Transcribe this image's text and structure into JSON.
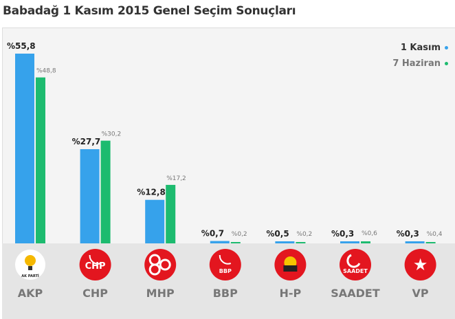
{
  "title": "Babadağ 1 Kasım 2015 Genel Seçim Sonuçları",
  "colors": {
    "kasim": "#36a2eb",
    "haziran": "#1dbb6f",
    "logo_red": "#e3161f"
  },
  "chart_data": {
    "type": "bar",
    "title": "Babadağ 1 Kasım 2015 Genel Seçim Sonuçları",
    "categories": [
      "AKP",
      "CHP",
      "MHP",
      "BBP",
      "H-P",
      "SAADET",
      "VP"
    ],
    "series": [
      {
        "name": "1 Kasım",
        "values": [
          55.8,
          27.7,
          12.8,
          0.7,
          0.5,
          0.3,
          0.3
        ],
        "labels": [
          "%55,8",
          "%27,7",
          "%12,8",
          "%0,7",
          "%0,5",
          "%0,3",
          "%0,3"
        ]
      },
      {
        "name": "7 Haziran",
        "values": [
          48.8,
          30.2,
          17.2,
          0.2,
          0.2,
          0.6,
          0.4
        ],
        "labels": [
          "%48,8",
          "%30,2",
          "%17,2",
          "%0,2",
          "%0,2",
          "%0,6",
          "%0,4"
        ]
      }
    ],
    "logo_text": [
      "AK PARTİ",
      "CHP",
      "",
      "BBP",
      "",
      "SAADET",
      ""
    ],
    "ylim": [
      0,
      60
    ],
    "legend": "top-right",
    "grid": false
  }
}
